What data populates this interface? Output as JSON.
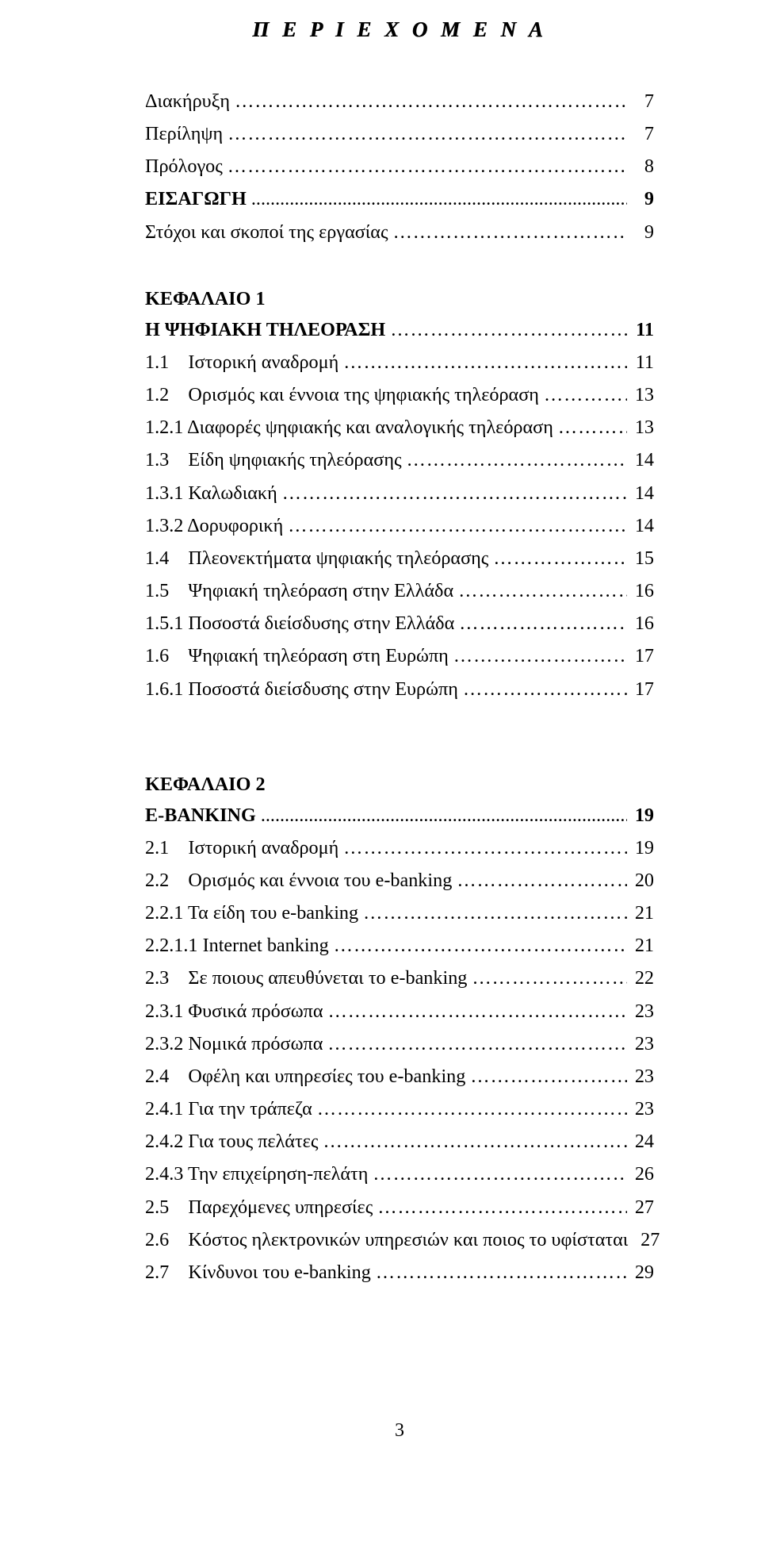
{
  "typography": {
    "font_family": "Times New Roman",
    "body_fontsize_pt": 18,
    "title_fontsize_pt": 20,
    "text_color": "#000000",
    "background_color": "#ffffff"
  },
  "title": "Π Ε Ρ Ι Ε Χ Ο Μ Ε Ν Α",
  "intro": [
    {
      "label": "Διακήρυξη",
      "page": "7",
      "bold": false
    },
    {
      "label": "Περίληψη",
      "page": "7",
      "bold": false
    },
    {
      "label": "Πρόλογος",
      "page": "8",
      "bold": false
    },
    {
      "label": "ΕΙΣΑΓΩΓΗ",
      "page": "9",
      "bold": true,
      "leader": "dots"
    },
    {
      "label": "Στόχοι και σκοποί της εργασίας",
      "page": "9",
      "bold": false
    }
  ],
  "chapter1_heading": "ΚΕΦΑΛΑΙΟ 1",
  "chapter1": [
    {
      "label": "Η ΨΗΦΙΑΚΗ ΤΗΛΕΟΡΑΣΗ",
      "page": "11",
      "bold": true
    },
    {
      "label": "1.1    Ιστορική αναδρομή",
      "page": "11",
      "bold": false
    },
    {
      "label": "1.2    Ορισμός και έννοια της ψηφιακής τηλεόραση",
      "page": "13",
      "bold": false
    },
    {
      "label": "1.2.1 Διαφορές ψηφιακής και αναλογικής τηλεόραση",
      "page": "13",
      "bold": false
    },
    {
      "label": "1.3    Είδη ψηφιακής τηλεόρασης",
      "page": "14",
      "bold": false
    },
    {
      "label": "1.3.1 Καλωδιακή",
      "page": "14",
      "bold": false
    },
    {
      "label": "1.3.2 Δορυφορική",
      "page": "14",
      "bold": false
    },
    {
      "label": "1.4    Πλεονεκτήματα ψηφιακής τηλεόρασης",
      "page": "15",
      "bold": false
    },
    {
      "label": "1.5    Ψηφιακή τηλεόραση στην Ελλάδα",
      "page": "16",
      "bold": false
    },
    {
      "label": "1.5.1 Ποσοστά διείσδυσης στην Ελλάδα",
      "page": "16",
      "bold": false
    },
    {
      "label": "1.6    Ψηφιακή τηλεόραση στη Ευρώπη",
      "page": "17",
      "bold": false
    },
    {
      "label": "1.6.1 Ποσοστά διείσδυσης στην Ευρώπη",
      "page": "17",
      "bold": false
    }
  ],
  "chapter2_heading": "ΚΕΦΑΛΑΙΟ 2",
  "chapter2": [
    {
      "label": "E-BANKING",
      "page": "19",
      "bold": true,
      "leader": "dots"
    },
    {
      "label": "2.1    Ιστορική αναδρομή",
      "page": "19",
      "bold": false
    },
    {
      "label": "2.2    Ορισμός και έννοια του e-banking",
      "page": "20",
      "bold": false
    },
    {
      "label": "2.2.1 Τα είδη του e-banking",
      "page": "21",
      "bold": false
    },
    {
      "label": "2.2.1.1 Internet banking",
      "page": "21",
      "bold": false
    },
    {
      "label": "2.3    Σε ποιους απευθύνεται το e-banking",
      "page": "22",
      "bold": false
    },
    {
      "label": "2.3.1 Φυσικά πρόσωπα",
      "page": "23",
      "bold": false
    },
    {
      "label": "2.3.2 Νομικά πρόσωπα",
      "page": "23",
      "bold": false
    },
    {
      "label": "2.4    Οφέλη και υπηρεσίες του e-banking",
      "page": "23",
      "bold": false
    },
    {
      "label": "2.4.1 Για την τράπεζα",
      "page": "23",
      "bold": false
    },
    {
      "label": "2.4.2 Για τους πελάτες",
      "page": "24",
      "bold": false
    },
    {
      "label": "2.4.3 Την επιχείρηση-πελάτη",
      "page": "26",
      "bold": false
    },
    {
      "label": "2.5    Παρεχόμενες υπηρεσίες",
      "page": "27",
      "bold": false
    },
    {
      "label": "2.6    Κόστος ηλεκτρονικών υπηρεσιών και ποιος το υφίσταται",
      "page": "27",
      "bold": false
    },
    {
      "label": "2.7    Κίνδυνοι του e-banking",
      "page": "29",
      "bold": false
    }
  ],
  "footer_page_number": "3"
}
